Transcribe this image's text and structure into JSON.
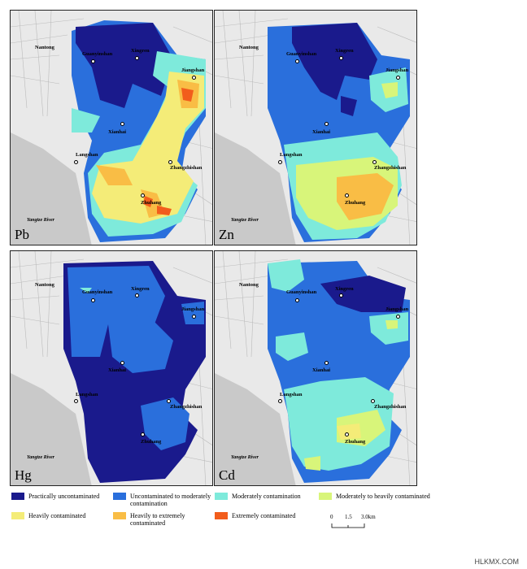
{
  "panels": [
    {
      "id": "pb",
      "letter": "Pb"
    },
    {
      "id": "zn",
      "letter": "Zn"
    },
    {
      "id": "hg",
      "letter": "Hg"
    },
    {
      "id": "cd",
      "letter": "Cd"
    }
  ],
  "places": {
    "nantong": "Nantong",
    "guanyinshan": "Guanyinshan",
    "xingren": "Xingren",
    "jiangshan": "Jiangshan",
    "xianhai": "Xianhai",
    "langshan": "Langshan",
    "zhangzhishan": "Zhangzhishan",
    "zhuhang": "Zhuhang",
    "river": "Yangtze River"
  },
  "legend": [
    {
      "label": "Practically uncontaminated",
      "color": "#1a1a8c"
    },
    {
      "label": "Uncontaminated to moderately contamination",
      "color": "#2a6fdc"
    },
    {
      "label": "Moderately contamination",
      "color": "#7eeadb"
    },
    {
      "label": "Moderately to heavily contaminated",
      "color": "#d8f57a"
    },
    {
      "label": "Heavily contaminated",
      "color": "#f4ec78"
    },
    {
      "label": "Heavily to extremely contaminated",
      "color": "#f9bd45"
    },
    {
      "label": "Extremely contaminated",
      "color": "#f25d1c"
    }
  ],
  "scale": {
    "ticks": [
      "0",
      "1.5",
      "3.0km"
    ]
  },
  "watermark": "HLKMX.COM"
}
